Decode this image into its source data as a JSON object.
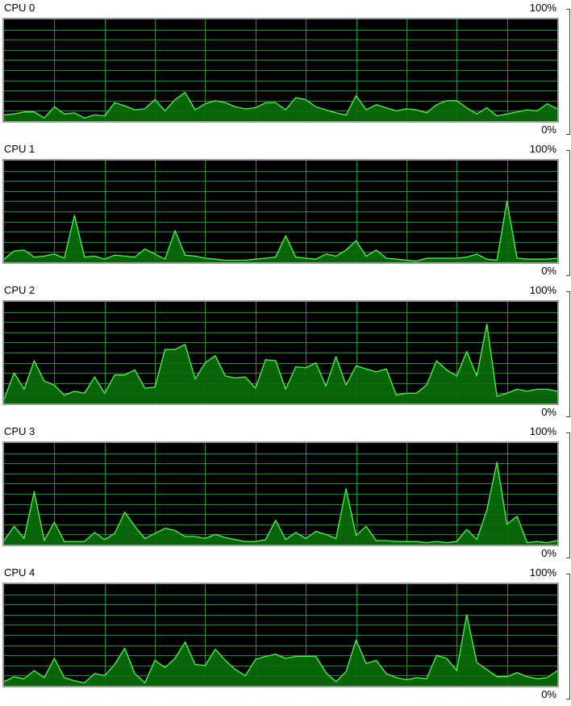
{
  "axis": {
    "max_label": "100%",
    "min_label": "0%"
  },
  "colors": {
    "background": "#000000",
    "grid": "#1f8f1f",
    "line": "#44ff44",
    "fill": "#0a6e0a",
    "frame": "#9a9a9a"
  },
  "cpus": [
    {
      "name": "CPU 0",
      "usage": [
        6,
        7,
        9,
        9,
        3,
        14,
        7,
        8,
        3,
        6,
        5,
        18,
        15,
        11,
        12,
        21,
        10,
        21,
        28,
        11,
        17,
        20,
        18,
        14,
        12,
        13,
        18,
        18,
        11,
        23,
        21,
        14,
        11,
        8,
        6,
        25,
        11,
        16,
        13,
        10,
        12,
        11,
        8,
        16,
        20,
        20,
        13,
        7,
        13,
        5,
        7,
        9,
        11,
        10,
        17,
        12
      ]
    },
    {
      "name": "CPU 1",
      "usage": [
        3,
        11,
        12,
        5,
        6,
        8,
        4,
        46,
        5,
        6,
        3,
        7,
        6,
        5,
        13,
        8,
        3,
        31,
        7,
        6,
        4,
        3,
        2,
        2,
        2,
        3,
        4,
        5,
        26,
        5,
        4,
        3,
        8,
        6,
        12,
        21,
        6,
        12,
        4,
        3,
        2,
        1,
        4,
        4,
        4,
        4,
        5,
        8,
        3,
        2,
        60,
        4,
        3,
        3,
        3,
        4
      ]
    },
    {
      "name": "CPU 2",
      "usage": [
        4,
        30,
        14,
        42,
        22,
        18,
        8,
        12,
        10,
        26,
        10,
        28,
        28,
        33,
        15,
        16,
        53,
        53,
        58,
        24,
        40,
        47,
        27,
        25,
        26,
        15,
        43,
        42,
        14,
        36,
        35,
        40,
        17,
        46,
        18,
        37,
        34,
        31,
        34,
        8,
        10,
        10,
        18,
        42,
        33,
        27,
        51,
        27,
        78,
        7,
        10,
        14,
        12,
        14,
        14,
        12
      ]
    },
    {
      "name": "CPU 3",
      "usage": [
        4,
        18,
        6,
        52,
        4,
        22,
        3,
        3,
        3,
        12,
        5,
        11,
        32,
        18,
        6,
        11,
        16,
        14,
        8,
        8,
        6,
        10,
        7,
        5,
        3,
        3,
        5,
        24,
        5,
        12,
        6,
        13,
        10,
        6,
        55,
        9,
        18,
        4,
        4,
        3,
        3,
        3,
        2,
        3,
        2,
        3,
        15,
        5,
        34,
        81,
        20,
        28,
        2,
        3,
        2,
        4
      ]
    },
    {
      "name": "CPU 4",
      "usage": [
        4,
        9,
        7,
        15,
        8,
        27,
        8,
        5,
        3,
        12,
        10,
        21,
        37,
        12,
        3,
        25,
        18,
        27,
        43,
        21,
        20,
        36,
        25,
        16,
        10,
        26,
        29,
        31,
        27,
        29,
        29,
        29,
        13,
        4,
        14,
        45,
        22,
        25,
        12,
        8,
        6,
        8,
        7,
        30,
        27,
        15,
        70,
        23,
        16,
        9,
        9,
        13,
        9,
        7,
        8,
        15
      ]
    }
  ]
}
